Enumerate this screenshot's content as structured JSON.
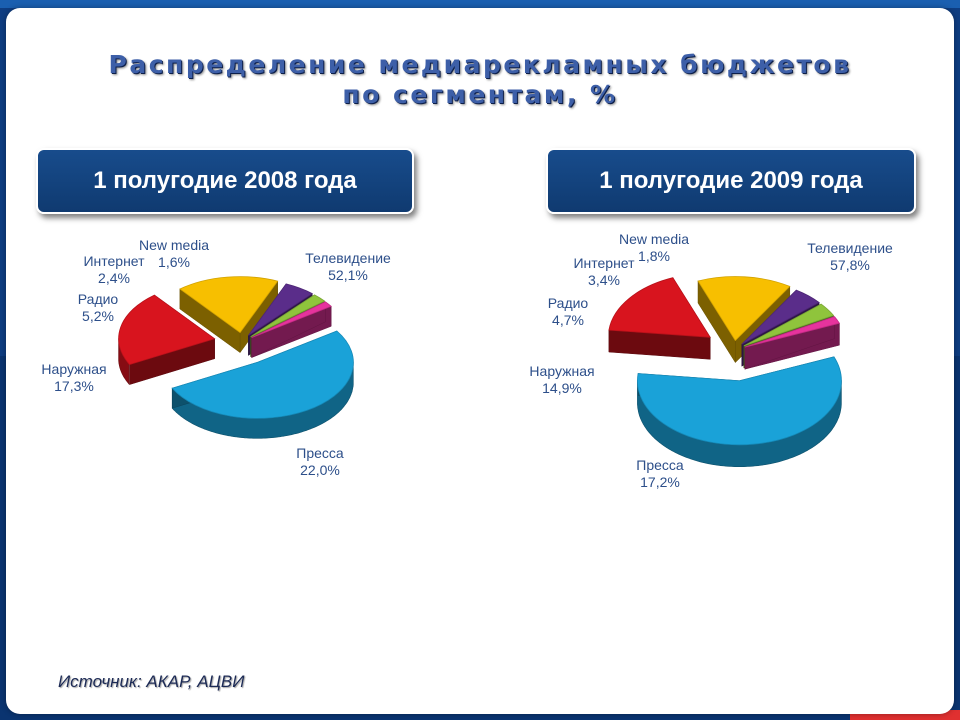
{
  "title": {
    "line1": "Распределение медиарекламных бюджетов",
    "line2": "по сегментам, %"
  },
  "source": "Источник: АКАР, АЦВИ",
  "colors": {
    "tv": "#1aa2d8",
    "press": "#d8141e",
    "outdoor": "#f7bf00",
    "radio": "#5a2d8a",
    "internet": "#8fc43c",
    "newmedia": "#e6339d",
    "label": "#2d4f8a"
  },
  "chart_data": [
    {
      "type": "pie",
      "title": "1 полугодие 2008 года",
      "slices": [
        {
          "label": "Телевидение",
          "value": 52.1,
          "value_label": "52,1%"
        },
        {
          "label": "Пресса",
          "value": 22.0,
          "value_label": "22,0%"
        },
        {
          "label": "Наружная",
          "value": 17.3,
          "value_label": "17,3%"
        },
        {
          "label": "Радио",
          "value": 5.2,
          "value_label": "5,2%"
        },
        {
          "label": "Интернет",
          "value": 2.4,
          "value_label": "2,4%"
        },
        {
          "label": "New media",
          "value": 1.6,
          "value_label": "1,6%"
        }
      ]
    },
    {
      "type": "pie",
      "title": "1 полугодие 2009 года",
      "slices": [
        {
          "label": "Телевидение",
          "value": 57.8,
          "value_label": "57,8%"
        },
        {
          "label": "Пресса",
          "value": 17.2,
          "value_label": "17,2%"
        },
        {
          "label": "Наружная",
          "value": 14.9,
          "value_label": "14,9%"
        },
        {
          "label": "Радио",
          "value": 4.7,
          "value_label": "4,7%"
        },
        {
          "label": "Интернет",
          "value": 3.4,
          "value_label": "3,4%"
        },
        {
          "label": "New media",
          "value": 1.8,
          "value_label": "1,8%"
        }
      ]
    }
  ]
}
